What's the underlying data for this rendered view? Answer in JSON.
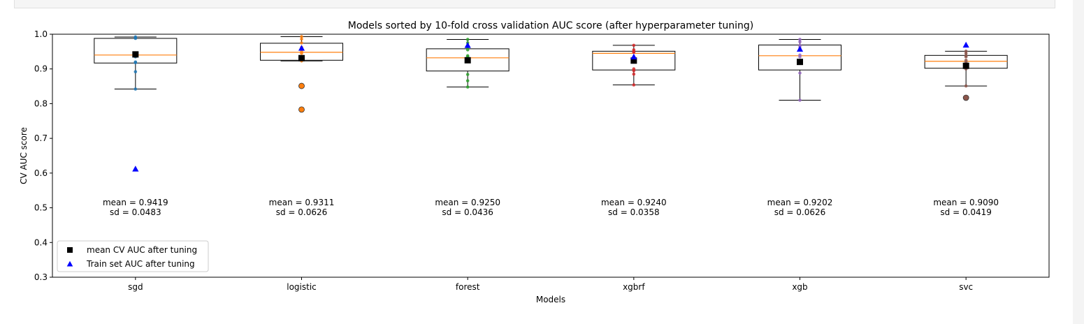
{
  "chart_data": {
    "type": "box",
    "title": "Models sorted by 10-fold cross validation AUC score (after hyperparameter tuning)",
    "xlabel": "Models",
    "ylabel": "CV AUC score",
    "ylim": [
      0.3,
      1.0
    ],
    "yticks": [
      0.3,
      0.4,
      0.5,
      0.6,
      0.7,
      0.8,
      0.9,
      1.0
    ],
    "categories": [
      "sgd",
      "logistic",
      "forest",
      "xgbrf",
      "xgb",
      "svc"
    ],
    "grid": false,
    "legend": {
      "placement": "lower-left",
      "entries": [
        {
          "label": "mean CV AUC after tuning",
          "marker": "square",
          "color": "#000000"
        },
        {
          "label": "Train set AUC after tuning",
          "marker": "triangle",
          "color": "#0000ff"
        }
      ]
    },
    "series": [
      {
        "model": "sgd",
        "color": "#1f77b4",
        "box": {
          "whisker_low": 0.842,
          "q1": 0.917,
          "median": 0.94,
          "q3": 0.988,
          "whisker_high": 0.992
        },
        "fliers": [],
        "cv_points": [
          0.992,
          0.99,
          0.945,
          0.94,
          0.935,
          0.92,
          0.918,
          0.892,
          0.842,
          0.988
        ],
        "mean": 0.9419,
        "train_auc": 0.612,
        "mean_label": "mean = 0.9419",
        "sd_label": "sd = 0.0483"
      },
      {
        "model": "logistic",
        "color": "#ff7f0e",
        "box": {
          "whisker_low": 0.923,
          "q1": 0.925,
          "median": 0.948,
          "q3": 0.974,
          "whisker_high": 0.993
        },
        "fliers": [
          0.851,
          0.783
        ],
        "cv_points": [
          0.993,
          0.986,
          0.975,
          0.962,
          0.95,
          0.945,
          0.935,
          0.923,
          0.851,
          0.783
        ],
        "mean": 0.9311,
        "train_auc": 0.96,
        "mean_label": "mean = 0.9311",
        "sd_label": "sd = 0.0626"
      },
      {
        "model": "forest",
        "color": "#2ca02c",
        "box": {
          "whisker_low": 0.848,
          "q1": 0.894,
          "median": 0.932,
          "q3": 0.958,
          "whisker_high": 0.985
        },
        "fliers": [],
        "cv_points": [
          0.985,
          0.975,
          0.962,
          0.938,
          0.935,
          0.93,
          0.884,
          0.866,
          0.848,
          0.955
        ],
        "mean": 0.925,
        "train_auc": 0.968,
        "mean_label": "mean = 0.9250",
        "sd_label": "sd = 0.0436"
      },
      {
        "model": "xgbrf",
        "color": "#d62728",
        "box": {
          "whisker_low": 0.854,
          "q1": 0.897,
          "median": 0.945,
          "q3": 0.951,
          "whisker_high": 0.968
        },
        "fliers": [],
        "cv_points": [
          0.968,
          0.955,
          0.948,
          0.93,
          0.92,
          0.9,
          0.895,
          0.885,
          0.854,
          0.95
        ],
        "mean": 0.924,
        "train_auc": 0.935,
        "mean_label": "mean = 0.9240",
        "sd_label": "sd = 0.0358"
      },
      {
        "model": "xgb",
        "color": "#9467bd",
        "box": {
          "whisker_low": 0.81,
          "q1": 0.897,
          "median": 0.938,
          "q3": 0.969,
          "whisker_high": 0.985
        },
        "fliers": [],
        "cv_points": [
          0.985,
          0.978,
          0.968,
          0.96,
          0.955,
          0.94,
          0.935,
          0.888,
          0.81,
          0.966
        ],
        "mean": 0.9202,
        "train_auc": 0.957,
        "mean_label": "mean = 0.9202",
        "sd_label": "sd = 0.0626"
      },
      {
        "model": "svc",
        "color": "#8c564b",
        "box": {
          "whisker_low": 0.851,
          "q1": 0.902,
          "median": 0.922,
          "q3": 0.939,
          "whisker_high": 0.951
        },
        "fliers": [
          0.817
        ],
        "cv_points": [
          0.951,
          0.945,
          0.935,
          0.925,
          0.92,
          0.905,
          0.9,
          0.851,
          0.817,
          0.938
        ],
        "mean": 0.909,
        "train_auc": 0.969,
        "mean_label": "mean = 0.9090",
        "sd_label": "sd = 0.0419"
      }
    ],
    "colors": {
      "median": "#ff7f0e",
      "box": "#000000",
      "mean_marker": "#000000",
      "train_marker": "#0000ff"
    }
  }
}
